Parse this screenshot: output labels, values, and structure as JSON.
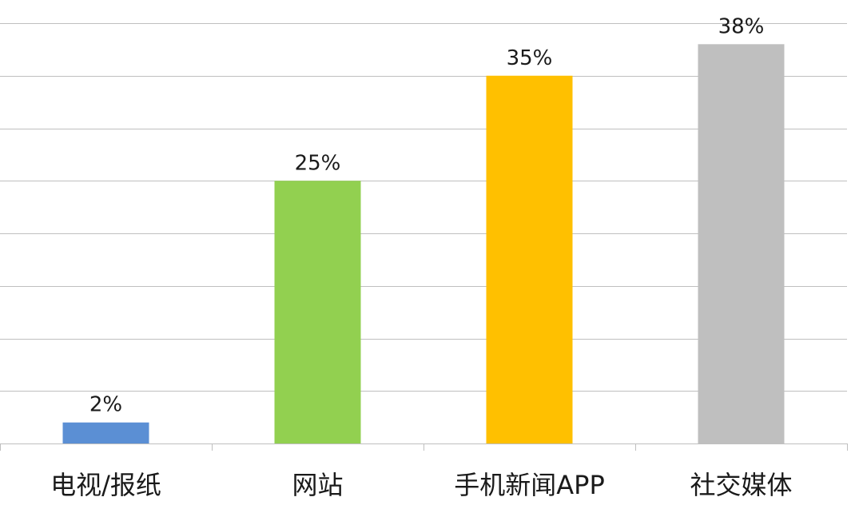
{
  "chart_data": {
    "type": "bar",
    "categories": [
      "电视/报纸",
      "网站",
      "手机新闻APP",
      "社交媒体"
    ],
    "values": [
      2,
      25,
      35,
      38
    ],
    "data_labels": [
      "2%",
      "25%",
      "35%",
      "38%"
    ],
    "colors": [
      "#5b8fd4",
      "#92d050",
      "#ffc000",
      "#bfbfbf"
    ],
    "ylim": [
      0,
      40
    ],
    "ytick_step": 5,
    "grid": true,
    "legend": "none"
  }
}
